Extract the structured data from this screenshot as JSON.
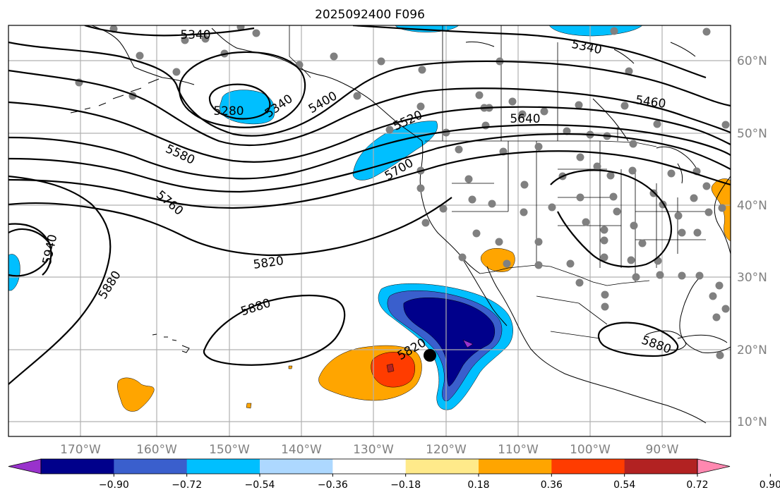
{
  "title": "2025092400 F096",
  "longitude_labels": [
    "170°W",
    "160°W",
    "150°W",
    "140°W",
    "130°W",
    "120°W",
    "110°W",
    "100°W",
    "90°W"
  ],
  "latitude_labels": [
    "60°N",
    "50°N",
    "40°N",
    "30°N",
    "20°N",
    "10°N"
  ],
  "contour_labels": [
    "5340",
    "5340",
    "5280",
    "5340",
    "5400",
    "5460",
    "5520",
    "5580",
    "5640",
    "5700",
    "5760",
    "5820",
    "5820",
    "5880",
    "5880",
    "5880",
    "5940"
  ],
  "colorbar": {
    "tick_labels": [
      "−0.90",
      "−0.72",
      "−0.54",
      "−0.36",
      "−0.18",
      "0.18",
      "0.36",
      "0.54",
      "0.72",
      "0.90"
    ],
    "colors": [
      "#9932cc",
      "#00008b",
      "#3a5fcd",
      "#00bfff",
      "#add8ff",
      "#ffffff",
      "#ffea8a",
      "#ffa500",
      "#ff3c00",
      "#b22222",
      "#ff88b0"
    ]
  },
  "shading_colors": {
    "lt_neg_036": "#00bfff",
    "lt_neg_054": "#3a5fcd",
    "lt_neg_072": "#00008b",
    "lt_neg_090": "#9932cc",
    "gt_036": "#ffa500",
    "gt_054": "#ff3c00",
    "gt_072": "#b22222"
  },
  "marker_colors": {
    "station": "#808080",
    "center": "#000000"
  }
}
